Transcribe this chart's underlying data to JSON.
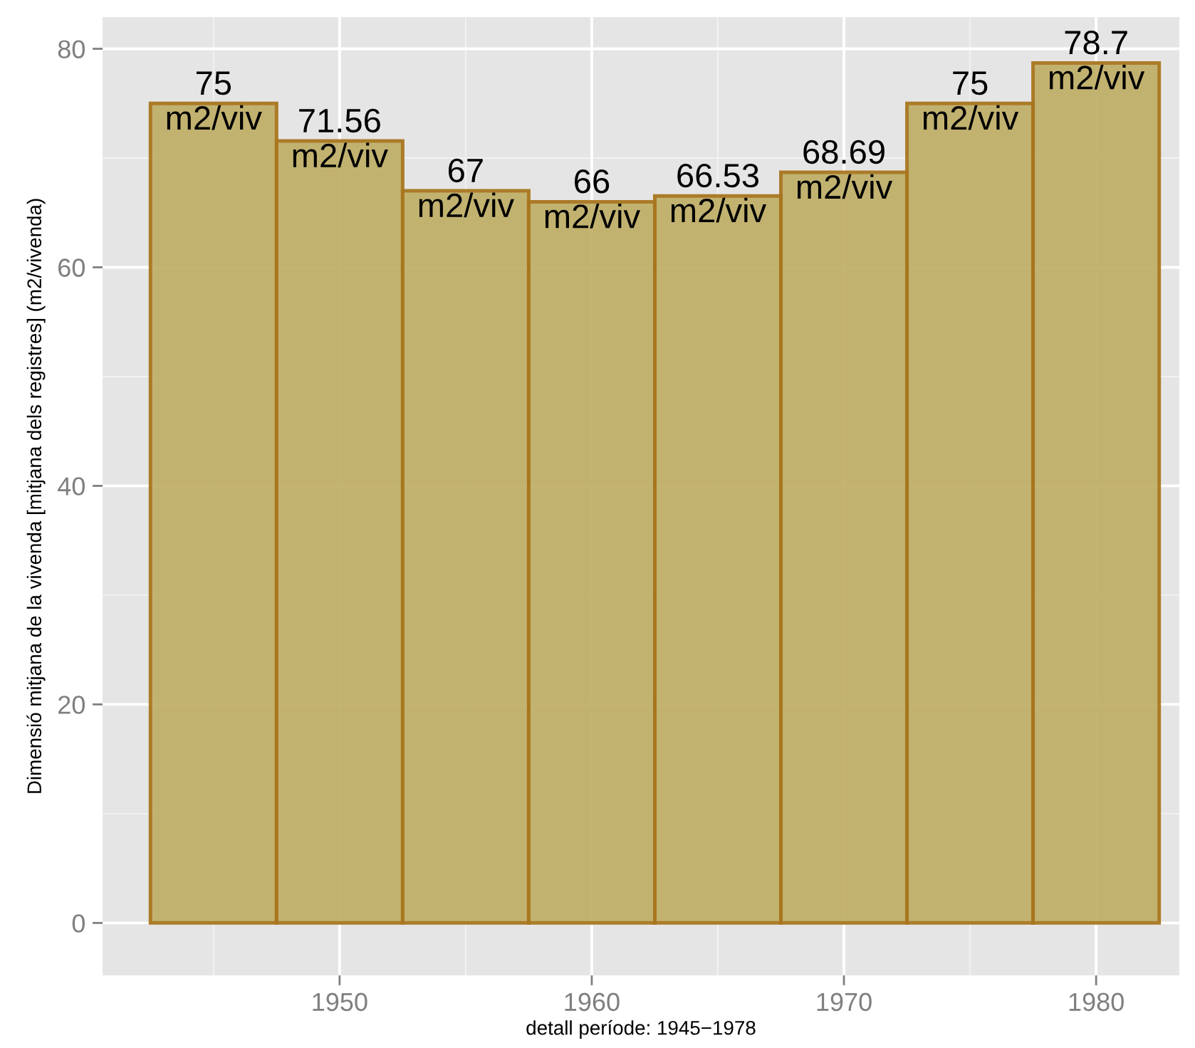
{
  "chart_data": {
    "type": "histogram",
    "xlabel": "detall període: 1945−1978",
    "ylabel": "Dimensió mitjana de la vivenda [mitjana dels registres] (m2/vivenda)",
    "bins": [
      1942.5,
      1947.5,
      1952.5,
      1957.5,
      1962.5,
      1967.5,
      1972.5,
      1977.5,
      1982.5
    ],
    "values": [
      75,
      71.56,
      67,
      66,
      66.53,
      68.69,
      75,
      78.7
    ],
    "value_labels": [
      "75\nm2/viv",
      "71.56\nm2/viv",
      "67\nm2/viv",
      "66\nm2/viv",
      "66.53\nm2/viv",
      "68.69\nm2/viv",
      "75\nm2/viv",
      "78.7\nm2/viv"
    ],
    "color": "#c1b06a",
    "xlim": [
      1940.6,
      1983.3
    ],
    "xticks": [
      1950,
      1960,
      1970,
      1980
    ],
    "ylim": [
      -4.8,
      82.9
    ],
    "yticks": [
      0,
      20,
      40,
      60,
      80
    ],
    "grid": true
  }
}
